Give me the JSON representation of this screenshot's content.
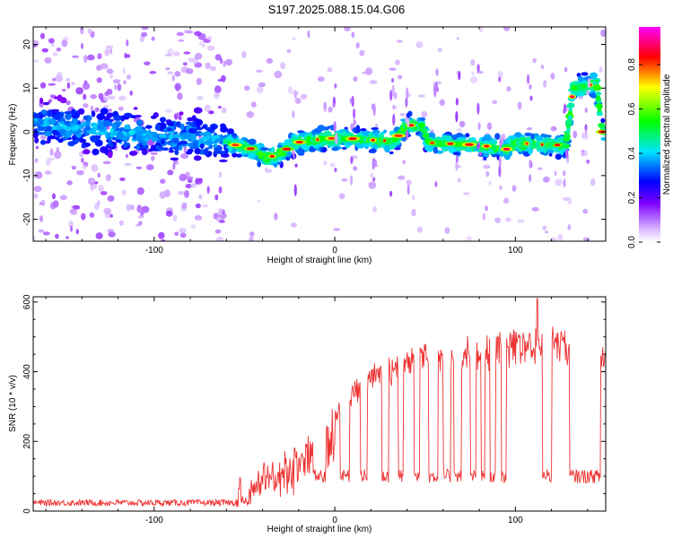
{
  "title": "S197.2025.088.15.04.G06",
  "chart_data": [
    {
      "type": "heatmap",
      "xlabel": "Height of straight line (km)",
      "ylabel": "Frequency (Hz)",
      "xlim": [
        -167,
        150
      ],
      "ylim": [
        -25,
        24
      ],
      "xticks": [
        -100,
        0,
        100
      ],
      "yticks": [
        20,
        10,
        0,
        -10,
        -20
      ],
      "colorbar": {
        "label": "Normalized spectral amplitude",
        "range": [
          0.0,
          0.97
        ],
        "ticks": [
          0.0,
          0.2,
          0.4,
          0.6,
          0.8
        ],
        "colormap": "rainbow (white/violet low, red/magenta high)"
      },
      "ridge_frequency_hz": [
        {
          "x": -165,
          "y": 2
        },
        {
          "x": -120,
          "y": 0
        },
        {
          "x": -62,
          "y": -2
        },
        {
          "x": -55,
          "y": -3
        },
        {
          "x": -45,
          "y": -4
        },
        {
          "x": -38,
          "y": -6
        },
        {
          "x": -30,
          "y": -5
        },
        {
          "x": -22,
          "y": -2.5
        },
        {
          "x": -5,
          "y": -1.5
        },
        {
          "x": 8,
          "y": -1.5
        },
        {
          "x": 25,
          "y": -2
        },
        {
          "x": 33,
          "y": -2
        },
        {
          "x": 40,
          "y": 1.5
        },
        {
          "x": 48,
          "y": 1.5
        },
        {
          "x": 52,
          "y": -2.5
        },
        {
          "x": 80,
          "y": -3
        },
        {
          "x": 95,
          "y": -4
        },
        {
          "x": 100,
          "y": -2.5
        },
        {
          "x": 118,
          "y": -3
        },
        {
          "x": 128,
          "y": -3
        },
        {
          "x": 132,
          "y": 10
        },
        {
          "x": 145,
          "y": 11
        },
        {
          "x": 148,
          "y": 0
        }
      ]
    },
    {
      "type": "line",
      "xlabel": "Height of straight line (km)",
      "ylabel": "SNR (10 * v/v)",
      "xlim": [
        -167,
        150
      ],
      "ylim": [
        0,
        615
      ],
      "xticks": [
        -100,
        0,
        100
      ],
      "yticks": [
        0,
        200,
        400,
        600
      ],
      "color": "#ee3333",
      "baseline_snr": [
        {
          "x": -167,
          "y": 22
        },
        {
          "x": -60,
          "y": 22
        },
        {
          "x": -50,
          "y": 35
        },
        {
          "x": -40,
          "y": 130
        },
        {
          "x": -20,
          "y": 180
        },
        {
          "x": 0,
          "y": 300
        },
        {
          "x": 20,
          "y": 420
        },
        {
          "x": 40,
          "y": 470
        },
        {
          "x": 60,
          "y": 480
        },
        {
          "x": 80,
          "y": 500
        },
        {
          "x": 100,
          "y": 520
        },
        {
          "x": 120,
          "y": 530
        },
        {
          "x": 150,
          "y": 480
        }
      ],
      "dropout_intervals": [
        [
          -12,
          -5
        ],
        [
          3,
          8
        ],
        [
          14,
          18
        ],
        [
          26,
          30
        ],
        [
          35,
          38
        ],
        [
          44,
          47
        ],
        [
          52,
          57
        ],
        [
          60,
          64
        ],
        [
          66,
          70
        ],
        [
          75,
          78
        ],
        [
          81,
          83
        ],
        [
          86,
          89
        ],
        [
          92,
          95
        ],
        [
          115,
          120
        ],
        [
          130,
          147
        ]
      ],
      "dropout_level": 100,
      "peak": {
        "x": 112,
        "y": 610
      }
    }
  ]
}
